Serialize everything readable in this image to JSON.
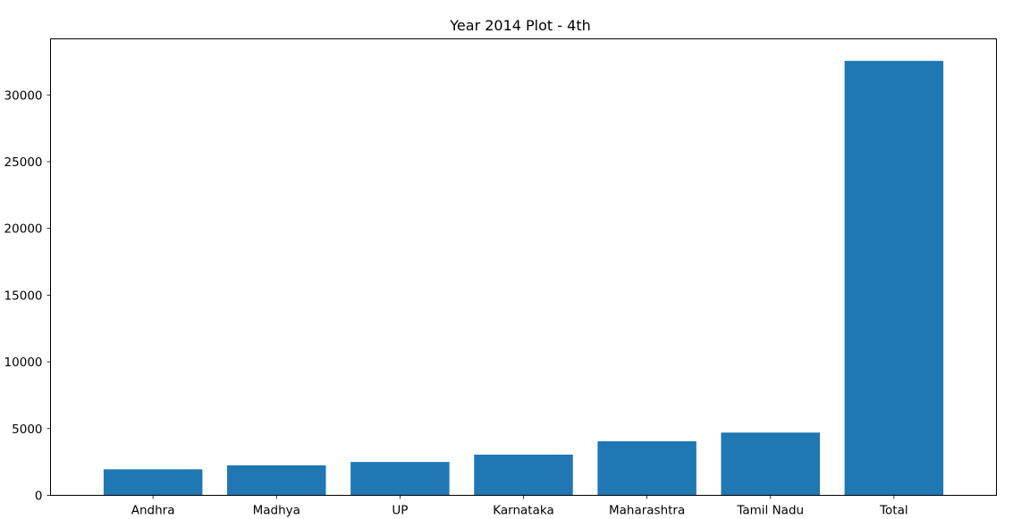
{
  "chart_data": {
    "type": "bar",
    "title": "Year 2014 Plot - 4th",
    "xlabel": "",
    "ylabel": "",
    "categories": [
      "Andhra",
      "Madhya",
      "UP",
      "Karnataka",
      "Maharashtra",
      "Tamil Nadu",
      "Total"
    ],
    "values": [
      1950,
      2250,
      2500,
      3050,
      4050,
      4700,
      32550
    ],
    "ylim": [
      0,
      34200
    ],
    "yticks": [
      0,
      5000,
      10000,
      15000,
      20000,
      25000,
      30000
    ],
    "bar_color": "#1f77b4",
    "grid": false,
    "legend": "none"
  }
}
